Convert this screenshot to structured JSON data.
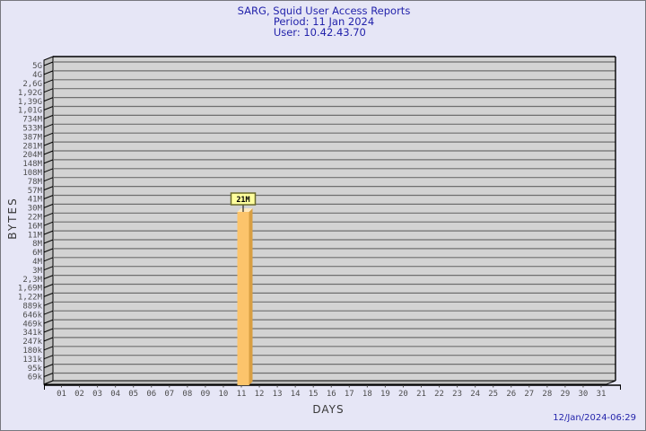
{
  "header": {
    "title": "SARG, Squid User Access Reports",
    "period": "Period: 11 Jan 2024",
    "user": "User: 10.42.43.70"
  },
  "footer": {
    "timestamp": "12/Jan/2024-06:29"
  },
  "chart_data": {
    "type": "bar",
    "title": "SARG, Squid User Access Reports",
    "subtitle_lines": [
      "Period: 11 Jan 2024",
      "User: 10.42.43.70"
    ],
    "xlabel": "DAYS",
    "ylabel": "BYTES",
    "y_scale": "logarithmic",
    "y_axis_top": "5G",
    "y_axis_bottom": "69k",
    "grid": "horizontal",
    "x_tick_labels": [
      "01",
      "02",
      "03",
      "04",
      "05",
      "06",
      "07",
      "08",
      "09",
      "10",
      "11",
      "12",
      "13",
      "14",
      "15",
      "16",
      "17",
      "18",
      "19",
      "20",
      "21",
      "22",
      "23",
      "24",
      "25",
      "26",
      "27",
      "28",
      "29",
      "30",
      "31"
    ],
    "y_tick_labels": [
      "5G",
      "4G",
      "2,6G",
      "1,92G",
      "1,39G",
      "1,01G",
      "734M",
      "533M",
      "387M",
      "281M",
      "204M",
      "148M",
      "108M",
      "78M",
      "57M",
      "41M",
      "30M",
      "22M",
      "16M",
      "11M",
      "8M",
      "6M",
      "4M",
      "3M",
      "2,3M",
      "1,69M",
      "1,22M",
      "889k",
      "646k",
      "469k",
      "341k",
      "247k",
      "180k",
      "131k",
      "95k",
      "69k"
    ],
    "bars": [
      {
        "day": "11",
        "value_label": "21M",
        "value_bytes": 21000000
      }
    ],
    "colors": {
      "background": "#e6e6f6",
      "plot_bg": "#d3d3d3",
      "wall": "#bfbfbf",
      "grid": "#6f6f6f",
      "axis_line": "#000000",
      "tick_text": "#4d4d4d",
      "title_text": "#2323ab",
      "bar_front": "#fcc46b",
      "bar_side": "#d99f42",
      "bar_top": "#fee9be",
      "value_box_bg": "#ffff9d",
      "value_box_border": "#6b6b2a",
      "value_text": "#000000"
    }
  }
}
